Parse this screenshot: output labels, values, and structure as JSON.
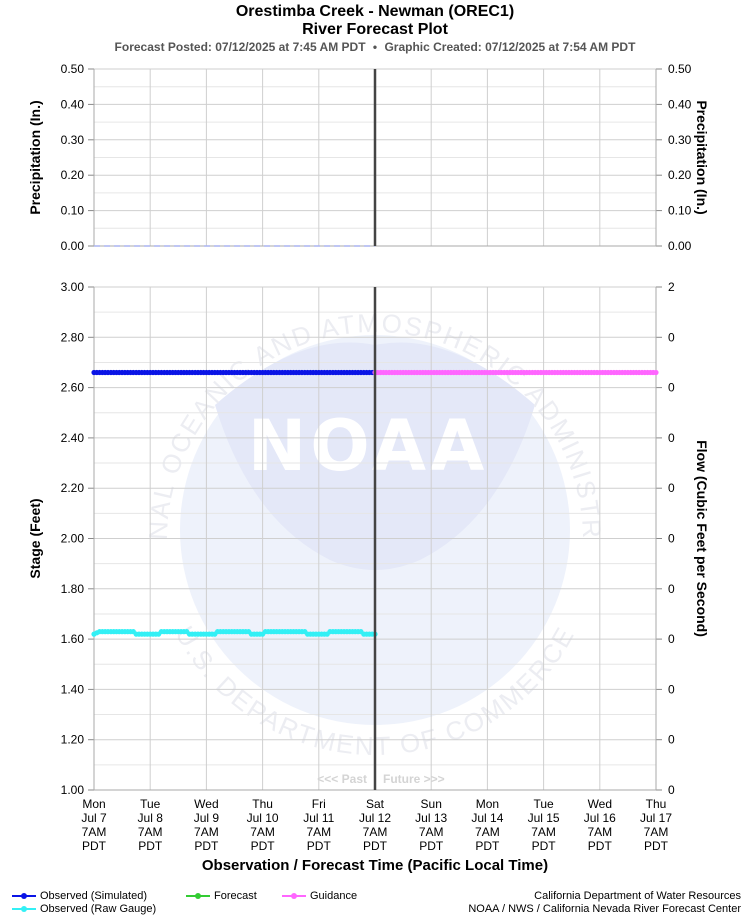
{
  "header": {
    "title": "Orestimba Creek - Newman (OREC1)",
    "subtitle": "River Forecast Plot",
    "posted": "Forecast Posted: 07/12/2025 at 7:45 AM PDT",
    "bullet": "•",
    "created": "Graphic Created: 07/12/2025 at 7:54 AM PDT"
  },
  "watermark": {
    "center_text": "NOAA",
    "ring_top": "NATIONAL OCEANIC AND ATMOSPHERIC ADMINISTRATION",
    "ring_bottom": "U.S. DEPARTMENT OF COMMERCE"
  },
  "chart_data": [
    {
      "type": "line",
      "panel": "precipitation",
      "ylabel_left": "Precipitation (In.)",
      "ylabel_right": "Precipitation (In.)",
      "ylim": [
        0,
        0.5
      ],
      "yticks": [
        "0.00",
        "0.10",
        "0.20",
        "0.30",
        "0.40",
        "0.50"
      ],
      "right_yticks": [
        "0.00",
        "0.10",
        "0.20",
        "0.30",
        "0.40",
        "0.50"
      ],
      "grid": true,
      "series": [
        {
          "values_x": [
            0,
            5
          ],
          "values_y": [
            0,
            0
          ],
          "color": "#aab4f0",
          "style": "dashed"
        }
      ]
    },
    {
      "type": "line",
      "panel": "stage",
      "xlabel": "Observation / Forecast Time (Pacific Local Time)",
      "ylabel_left": "Stage (Feet)",
      "ylabel_right": "Flow (Cubic Feet per Second)",
      "ylim": [
        1.0,
        3.0
      ],
      "yticks": [
        "1.00",
        "1.20",
        "1.40",
        "1.60",
        "1.80",
        "2.00",
        "2.20",
        "2.40",
        "2.60",
        "2.80",
        "3.00"
      ],
      "right_yticks": [
        "0",
        "0",
        "0",
        "0",
        "0",
        "0",
        "0",
        "0",
        "0",
        "0",
        "2"
      ],
      "grid": true,
      "xlim": [
        0,
        10
      ],
      "now_x": 5,
      "past_label": "<<< Past",
      "future_label": "Future >>>",
      "x_ticks": [
        [
          "Mon",
          "Jul 7",
          "7AM",
          "PDT"
        ],
        [
          "Tue",
          "Jul 8",
          "7AM",
          "PDT"
        ],
        [
          "Wed",
          "Jul 9",
          "7AM",
          "PDT"
        ],
        [
          "Thu",
          "Jul 10",
          "7AM",
          "PDT"
        ],
        [
          "Fri",
          "Jul 11",
          "7AM",
          "PDT"
        ],
        [
          "Sat",
          "Jul 12",
          "7AM",
          "PDT"
        ],
        [
          "Sun",
          "Jul 13",
          "7AM",
          "PDT"
        ],
        [
          "Mon",
          "Jul 14",
          "7AM",
          "PDT"
        ],
        [
          "Tue",
          "Jul 15",
          "7AM",
          "PDT"
        ],
        [
          "Wed",
          "Jul 16",
          "7AM",
          "PDT"
        ],
        [
          "Thu",
          "Jul 17",
          "7AM",
          "PDT"
        ]
      ],
      "series": [
        {
          "name": "Observed (Simulated)",
          "color": "#0a14e6",
          "x": [
            0,
            5
          ],
          "y": [
            2.66,
            2.66
          ]
        },
        {
          "name": "Observed (Raw Gauge)",
          "color": "#33f0f5",
          "x": [
            0,
            0.1,
            0.7,
            0.75,
            1.15,
            1.2,
            1.65,
            1.7,
            2.15,
            2.2,
            2.75,
            2.8,
            3.0,
            3.05,
            3.75,
            3.8,
            4.15,
            4.2,
            4.75,
            4.8,
            5.0
          ],
          "y": [
            1.62,
            1.63,
            1.63,
            1.62,
            1.62,
            1.63,
            1.63,
            1.62,
            1.62,
            1.63,
            1.63,
            1.62,
            1.62,
            1.63,
            1.63,
            1.62,
            1.62,
            1.63,
            1.63,
            1.62,
            1.62
          ]
        },
        {
          "name": "Forecast",
          "color": "#33cc33",
          "x": [],
          "y": []
        },
        {
          "name": "Guidance",
          "color": "#ff66ff",
          "x": [
            5,
            10
          ],
          "y": [
            2.66,
            2.66
          ]
        }
      ]
    }
  ],
  "legend": [
    {
      "label": "Observed (Simulated)",
      "color": "#0a14e6"
    },
    {
      "label": "Observed (Raw Gauge)",
      "color": "#33f0f5"
    },
    {
      "label": "Forecast",
      "color": "#33cc33"
    },
    {
      "label": "Guidance",
      "color": "#ff66ff"
    }
  ],
  "credits": {
    "line1": "California Department of Water Resources",
    "line2": "NOAA / NWS / California Nevada River Forecast Center"
  }
}
